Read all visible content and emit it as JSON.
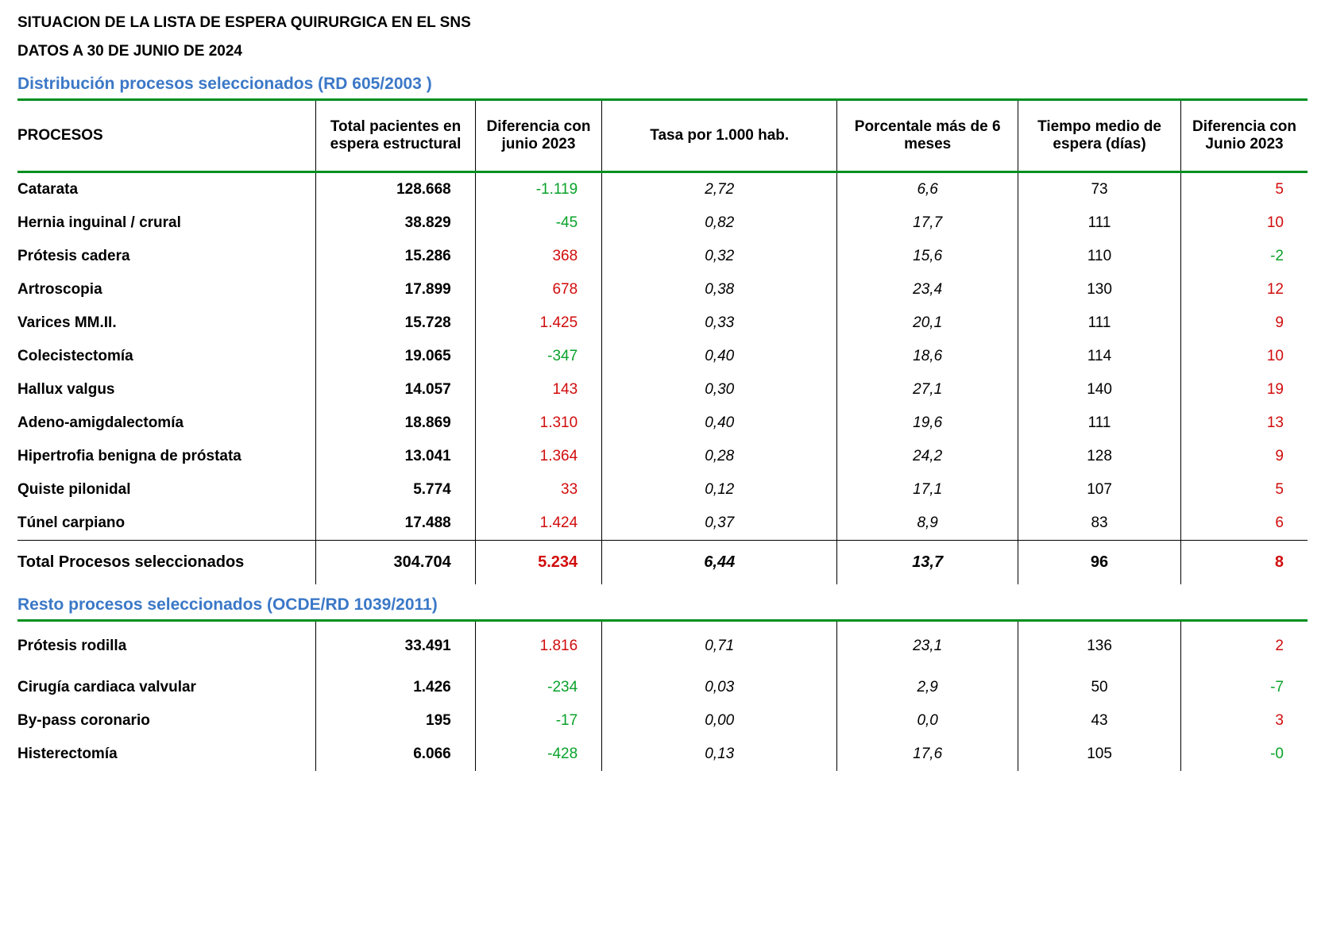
{
  "header": {
    "line1": "SITUACION DE LA LISTA DE ESPERA  QUIRURGICA EN EL  SNS",
    "line2": "DATOS A 30 DE JUNIO DE 2024"
  },
  "section1": {
    "title": "Distribución procesos seleccionados (RD 605/2003 )",
    "columns": [
      "PROCESOS",
      "Total pacientes en espera estructural",
      "Diferencia con junio 2023",
      "Tasa  por  1.000 hab.",
      "Porcentale más de 6 meses",
      "Tiempo medio de espera (días)",
      "Diferencia con Junio 2023"
    ],
    "rows": [
      {
        "proc": "Catarata",
        "total": "128.668",
        "diff1": "-1.119",
        "diff1_sign": "neg",
        "tasa": "2,72",
        "pct": "6,6",
        "tiempo": "73",
        "diff2": "5",
        "diff2_sign": "pos"
      },
      {
        "proc": "Hernia inguinal / crural",
        "total": "38.829",
        "diff1": "-45",
        "diff1_sign": "neg",
        "tasa": "0,82",
        "pct": "17,7",
        "tiempo": "111",
        "diff2": "10",
        "diff2_sign": "pos"
      },
      {
        "proc": "Prótesis cadera",
        "total": "15.286",
        "diff1": "368",
        "diff1_sign": "pos",
        "tasa": "0,32",
        "pct": "15,6",
        "tiempo": "110",
        "diff2": "-2",
        "diff2_sign": "neg"
      },
      {
        "proc": "Artroscopia",
        "total": "17.899",
        "diff1": "678",
        "diff1_sign": "pos",
        "tasa": "0,38",
        "pct": "23,4",
        "tiempo": "130",
        "diff2": "12",
        "diff2_sign": "pos"
      },
      {
        "proc": "Varices MM.II.",
        "total": "15.728",
        "diff1": "1.425",
        "diff1_sign": "pos",
        "tasa": "0,33",
        "pct": "20,1",
        "tiempo": "111",
        "diff2": "9",
        "diff2_sign": "pos"
      },
      {
        "proc": "Colecistectomía",
        "total": "19.065",
        "diff1": "-347",
        "diff1_sign": "neg",
        "tasa": "0,40",
        "pct": "18,6",
        "tiempo": "114",
        "diff2": "10",
        "diff2_sign": "pos"
      },
      {
        "proc": "Hallux valgus",
        "total": "14.057",
        "diff1": "143",
        "diff1_sign": "pos",
        "tasa": "0,30",
        "pct": "27,1",
        "tiempo": "140",
        "diff2": "19",
        "diff2_sign": "pos"
      },
      {
        "proc": "Adeno-amigdalectomía",
        "total": "18.869",
        "diff1": "1.310",
        "diff1_sign": "pos",
        "tasa": "0,40",
        "pct": "19,6",
        "tiempo": "111",
        "diff2": "13",
        "diff2_sign": "pos"
      },
      {
        "proc": "Hipertrofia benigna de próstata",
        "total": "13.041",
        "diff1": "1.364",
        "diff1_sign": "pos",
        "tasa": "0,28",
        "pct": "24,2",
        "tiempo": "128",
        "diff2": "9",
        "diff2_sign": "pos"
      },
      {
        "proc": "Quiste pilonidal",
        "total": "5.774",
        "diff1": "33",
        "diff1_sign": "pos",
        "tasa": "0,12",
        "pct": "17,1",
        "tiempo": "107",
        "diff2": "5",
        "diff2_sign": "pos"
      },
      {
        "proc": "Túnel carpiano",
        "total": "17.488",
        "diff1": "1.424",
        "diff1_sign": "pos",
        "tasa": "0,37",
        "pct": "8,9",
        "tiempo": "83",
        "diff2": "6",
        "diff2_sign": "pos"
      }
    ],
    "total": {
      "proc": "Total Procesos seleccionados",
      "total": "304.704",
      "diff1": "5.234",
      "diff1_sign": "pos",
      "tasa": "6,44",
      "pct": "13,7",
      "tiempo": "96",
      "diff2": "8",
      "diff2_sign": "pos"
    }
  },
  "section2": {
    "title": "Resto procesos seleccionados (OCDE/RD 1039/2011)",
    "rows": [
      {
        "proc": "Prótesis rodilla",
        "total": "33.491",
        "diff1": "1.816",
        "diff1_sign": "pos",
        "tasa": "0,71",
        "pct": "23,1",
        "tiempo": "136",
        "diff2": "2",
        "diff2_sign": "pos"
      },
      {
        "proc": "Cirugía cardiaca valvular",
        "total": "1.426",
        "diff1": "-234",
        "diff1_sign": "neg",
        "tasa": "0,03",
        "pct": "2,9",
        "tiempo": "50",
        "diff2": "-7",
        "diff2_sign": "neg"
      },
      {
        "proc": "By-pass coronario",
        "total": "195",
        "diff1": "-17",
        "diff1_sign": "neg",
        "tasa": "0,00",
        "pct": "0,0",
        "tiempo": "43",
        "diff2": "3",
        "diff2_sign": "pos"
      },
      {
        "proc": "Histerectomía",
        "total": "6.066",
        "diff1": "-428",
        "diff1_sign": "neg",
        "tasa": "0,13",
        "pct": "17,6",
        "tiempo": "105",
        "diff2": "-0",
        "diff2_sign": "neg"
      }
    ]
  },
  "colors": {
    "section_title": "#3b78c7",
    "green_rule": "#008f1f",
    "positive": "#d10c0c",
    "negative": "#0aa22a",
    "text": "#000000",
    "background": "#ffffff"
  }
}
